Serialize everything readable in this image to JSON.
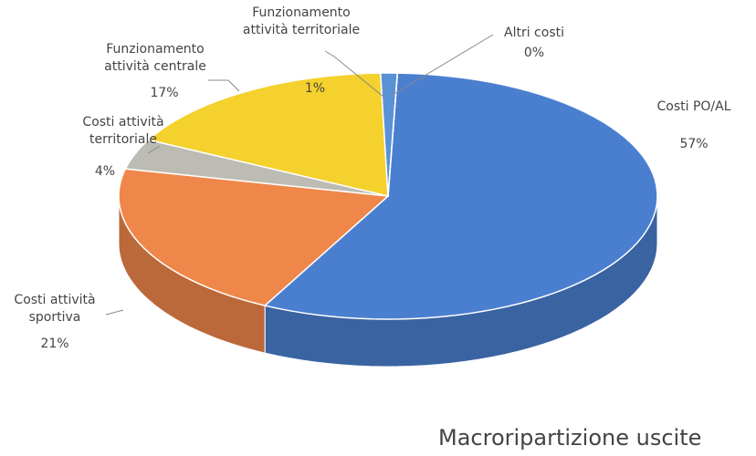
{
  "chart_data": {
    "type": "pie",
    "title": "Macroripartizione uscite",
    "categories": [
      "Costi PO/AL",
      "Costi attività sportiva",
      "Costi attività territoriale",
      "Funzionamento attività centrale",
      "Funzionamento attività territoriale",
      "Altri costi"
    ],
    "values": [
      57,
      21,
      4,
      17,
      1,
      0
    ],
    "value_labels": [
      "57%",
      "21%",
      "4%",
      "17%",
      "1%",
      "0%"
    ],
    "colors": [
      "#4a7fd0",
      "#f0874a",
      "#bdbcb4",
      "#f4d12c",
      "#5a92d6",
      "#7aa7dc"
    ]
  }
}
